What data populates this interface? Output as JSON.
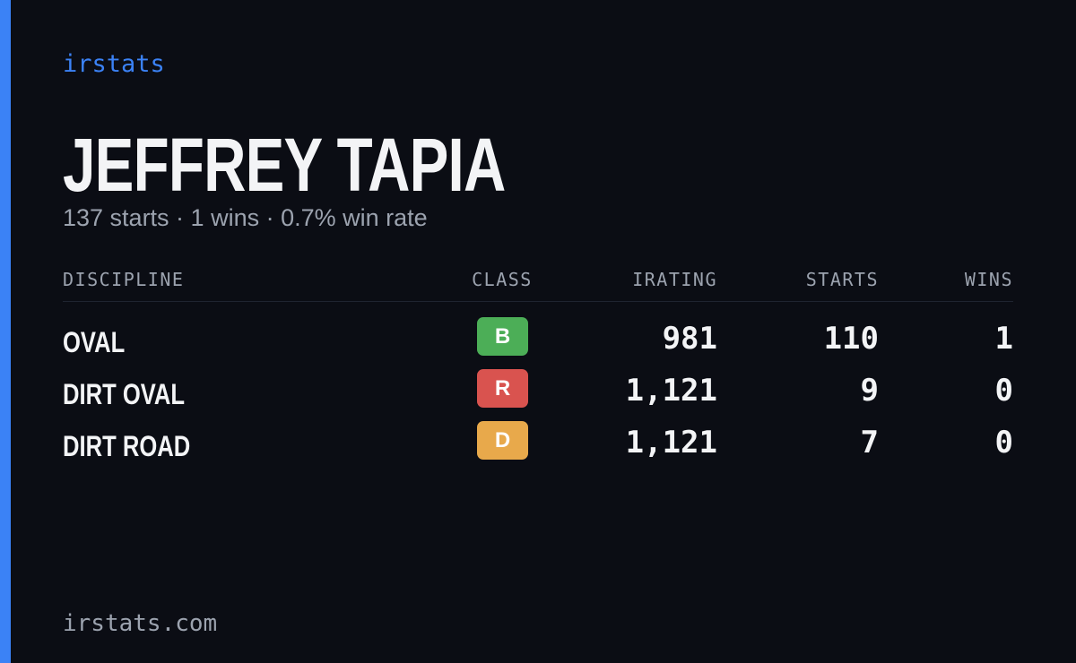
{
  "brand": "irstats",
  "driver": {
    "name": "JEFFREY TAPIA",
    "summary": "137 starts · 1 wins · 0.7% win rate"
  },
  "table": {
    "headers": [
      "DISCIPLINE",
      "CLASS",
      "IRATING",
      "STARTS",
      "WINS"
    ],
    "rows": [
      [
        "OVAL",
        "B",
        "981",
        "110",
        "1"
      ],
      [
        "DIRT OVAL",
        "R",
        "1,121",
        "9",
        "0"
      ],
      [
        "DIRT ROAD",
        "D",
        "1,121",
        "7",
        "0"
      ]
    ]
  },
  "footer": "irstats.com"
}
